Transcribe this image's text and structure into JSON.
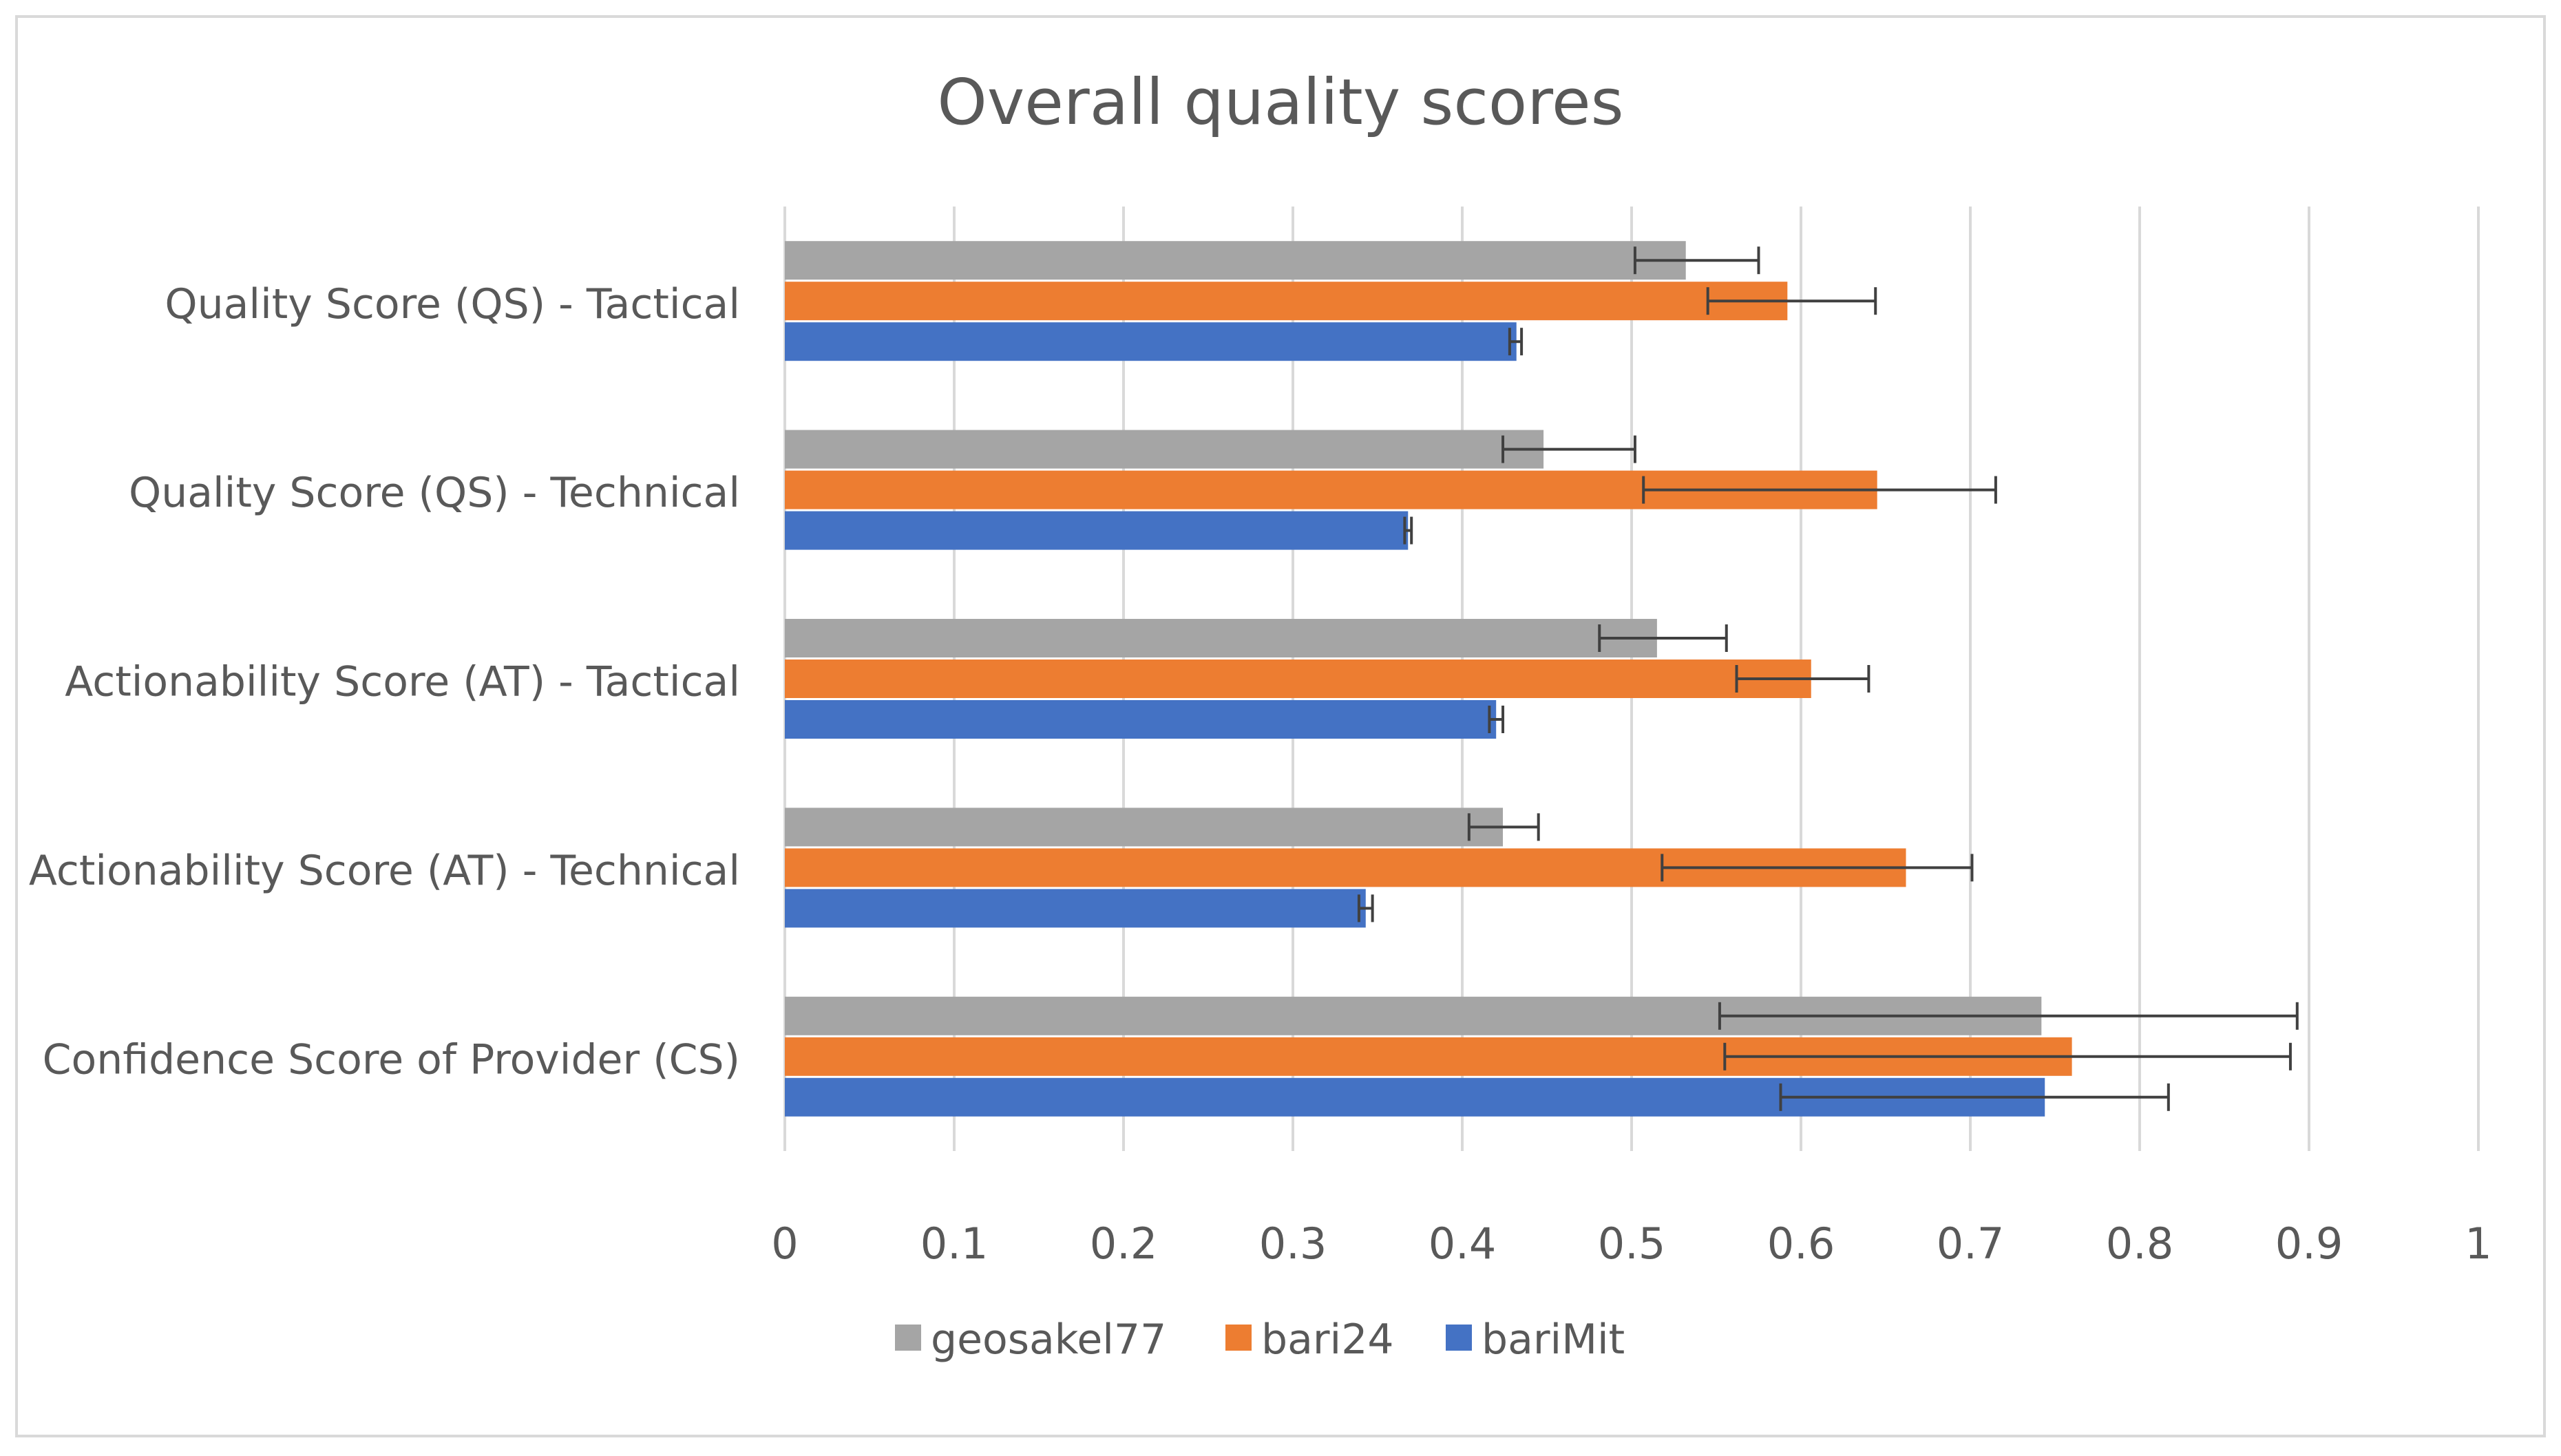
{
  "chart_data": {
    "type": "bar",
    "orientation": "horizontal",
    "title": "Overall quality scores",
    "xlabel": "",
    "ylabel": "",
    "xlim": [
      0,
      1
    ],
    "x_ticks": [
      "0",
      "0.1",
      "0.2",
      "0.3",
      "0.4",
      "0.5",
      "0.6",
      "0.7",
      "0.8",
      "0.9",
      "1"
    ],
    "grid": "vertical",
    "legend_position": "bottom",
    "categories": [
      "Quality Score (QS) - Tactical",
      "Quality Score (QS) - Technical",
      "Actionability Score (AT) - Tactical",
      "Actionability Score (AT) - Technical",
      "Confidence Score of Provider (CS)"
    ],
    "series": [
      {
        "name": "geosakel77",
        "color": "#a5a5a5",
        "values": [
          0.532,
          0.448,
          0.515,
          0.424,
          0.742
        ],
        "error_low": [
          0.502,
          0.424,
          0.481,
          0.404,
          0.552
        ],
        "error_high": [
          0.575,
          0.502,
          0.556,
          0.445,
          0.893
        ]
      },
      {
        "name": "bari24",
        "color": "#ed7d31",
        "values": [
          0.592,
          0.645,
          0.606,
          0.662,
          0.76
        ],
        "error_low": [
          0.545,
          0.507,
          0.562,
          0.518,
          0.555
        ],
        "error_high": [
          0.644,
          0.715,
          0.64,
          0.701,
          0.889
        ]
      },
      {
        "name": "bariMit",
        "color": "#4472c4",
        "values": [
          0.432,
          0.368,
          0.42,
          0.343,
          0.744
        ],
        "error_low": [
          0.428,
          0.366,
          0.416,
          0.339,
          0.588
        ],
        "error_high": [
          0.435,
          0.37,
          0.424,
          0.347,
          0.817
        ]
      }
    ]
  }
}
